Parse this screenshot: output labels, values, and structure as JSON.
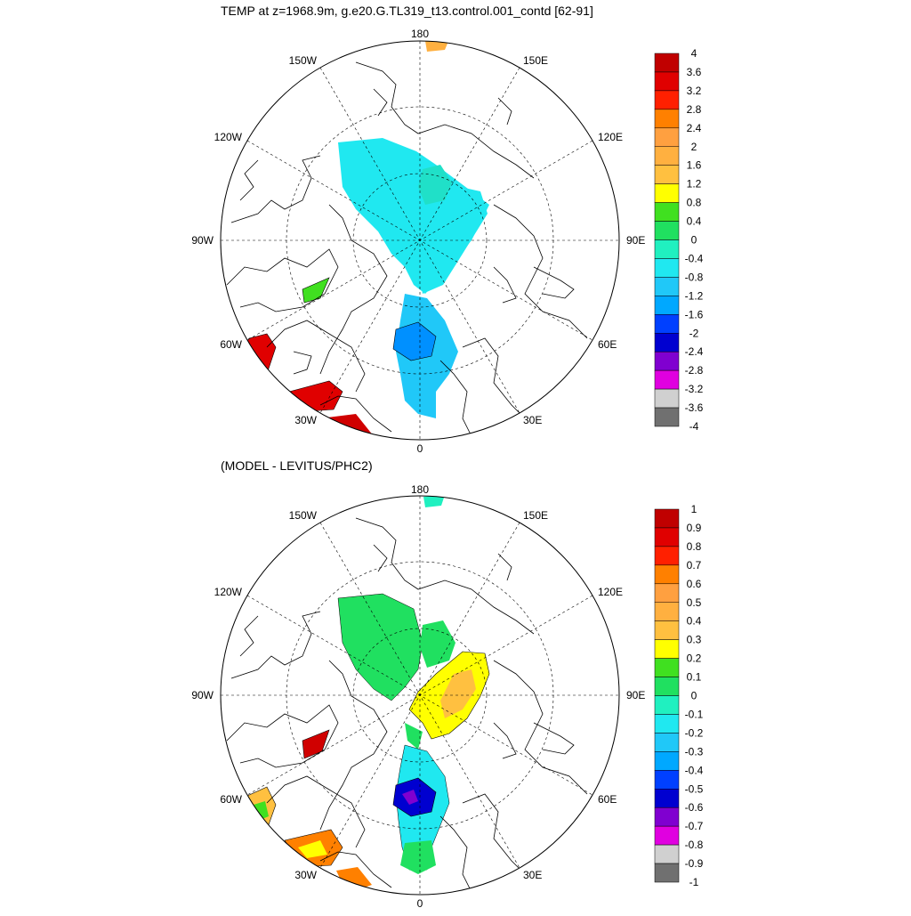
{
  "panels": [
    {
      "title": "TEMP at z=1968.9m, g.e20.G.TL319_t13.control.001_contd [62-91]",
      "longitude_labels": {
        "top": "180",
        "bottom": "0",
        "left": "90W",
        "right": "90E",
        "upper_left_1": "150W",
        "upper_left_2": "120W",
        "upper_right_1": "150E",
        "upper_right_2": "120E",
        "lower_left_1": "60W",
        "lower_left_2": "30W",
        "lower_right_1": "60E",
        "lower_right_2": "30E"
      },
      "colorbar": {
        "labels": [
          "4",
          "3.6",
          "3.2",
          "2.8",
          "2.4",
          "2",
          "1.6",
          "1.2",
          "0.8",
          "0.4",
          "0",
          "-0.4",
          "-0.8",
          "-1.2",
          "-1.6",
          "-2",
          "-2.4",
          "-2.8",
          "-3.2",
          "-3.6",
          "-4"
        ],
        "colors": [
          "#c00000",
          "#e00000",
          "#ff2000",
          "#ff8000",
          "#ffa040",
          "#ffb040",
          "#ffc040",
          "#ffff00",
          "#40e020",
          "#20e060",
          "#20f0c0",
          "#20e8f0",
          "#20c8f8",
          "#00a8ff",
          "#0040ff",
          "#0000d0",
          "#8000d0",
          "#e000e0",
          "#d0d0d0",
          "#707070"
        ]
      }
    },
    {
      "title": "(MODEL - LEVITUS/PHC2)",
      "longitude_labels": {
        "top": "180",
        "bottom": "0",
        "left": "90W",
        "right": "90E",
        "upper_left_1": "150W",
        "upper_left_2": "120W",
        "upper_right_1": "150E",
        "upper_right_2": "120E",
        "lower_left_1": "60W",
        "lower_left_2": "30W",
        "lower_right_1": "60E",
        "lower_right_2": "30E"
      },
      "colorbar": {
        "labels": [
          "1",
          "0.9",
          "0.8",
          "0.7",
          "0.6",
          "0.5",
          "0.4",
          "0.3",
          "0.2",
          "0.1",
          "0",
          "-0.1",
          "-0.2",
          "-0.3",
          "-0.4",
          "-0.5",
          "-0.6",
          "-0.7",
          "-0.8",
          "-0.9",
          "-1"
        ],
        "colors": [
          "#c00000",
          "#e00000",
          "#ff2000",
          "#ff8000",
          "#ffa040",
          "#ffb040",
          "#ffc040",
          "#ffff00",
          "#40e020",
          "#20e060",
          "#20f0c0",
          "#20e8f0",
          "#20c8f8",
          "#00a8ff",
          "#0040ff",
          "#0000d0",
          "#8000d0",
          "#e000e0",
          "#d0d0d0",
          "#707070"
        ]
      }
    }
  ]
}
